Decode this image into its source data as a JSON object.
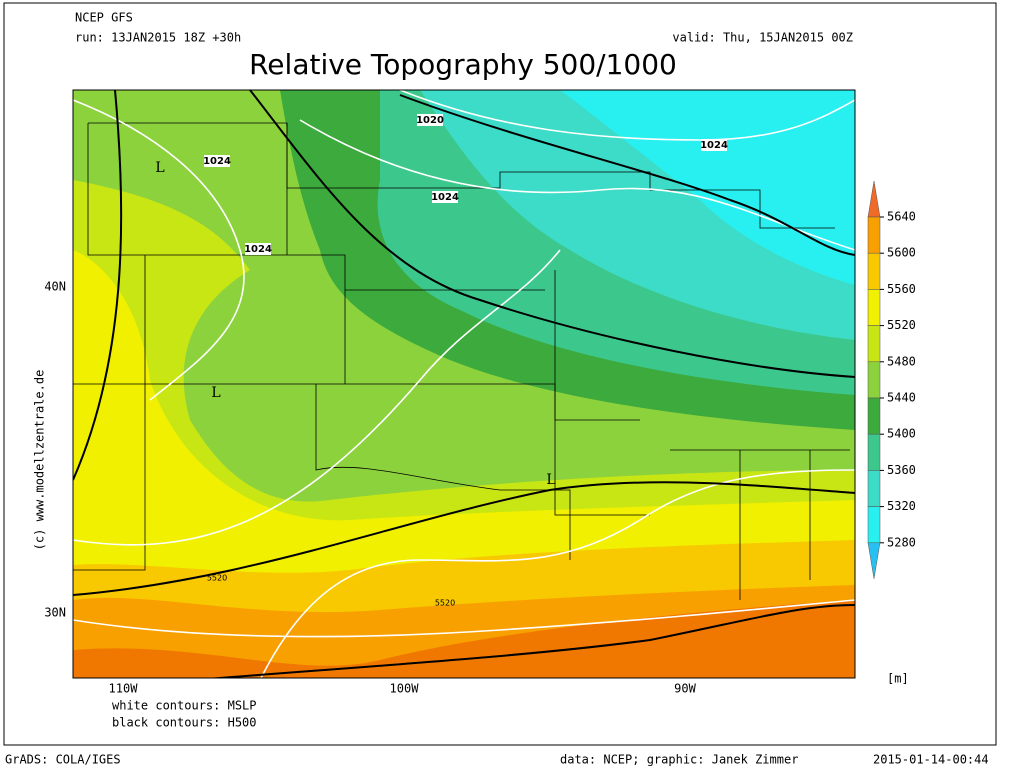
{
  "header": {
    "model": "NCEP GFS",
    "run": "run: 13JAN2015 18Z +30h",
    "valid": "valid: Thu, 15JAN2015 00Z"
  },
  "title": "Relative Topography 500/1000",
  "map": {
    "lat_labels": [
      "40N",
      "30N"
    ],
    "lon_labels": [
      "110W",
      "100W",
      "90W"
    ],
    "contour_labels": [
      "1020",
      "1024",
      "1024",
      "1024",
      "1024",
      "L",
      "L",
      "L",
      "5520",
      "5520"
    ]
  },
  "colorbar": {
    "labels": [
      "5640",
      "5600",
      "5560",
      "5520",
      "5480",
      "5440",
      "5400",
      "5360",
      "5320",
      "5280"
    ],
    "colors": [
      "#f06a28",
      "#f8a000",
      "#f8c800",
      "#f0f000",
      "#c8e614",
      "#8cd23c",
      "#3caa3c",
      "#3cc88c",
      "#3cdcc8",
      "#28f0f0",
      "#28c0f0"
    ],
    "unit": "[m]"
  },
  "legend": [
    "white contours: MSLP",
    "black contours: H500"
  ],
  "watermark": "(c) www.modellzentrale.de",
  "footer": {
    "software": "GrADS: COLA/IGES",
    "credits": "data: NCEP; graphic: Janek Zimmer",
    "timestamp": "2015-01-14-00:44"
  }
}
